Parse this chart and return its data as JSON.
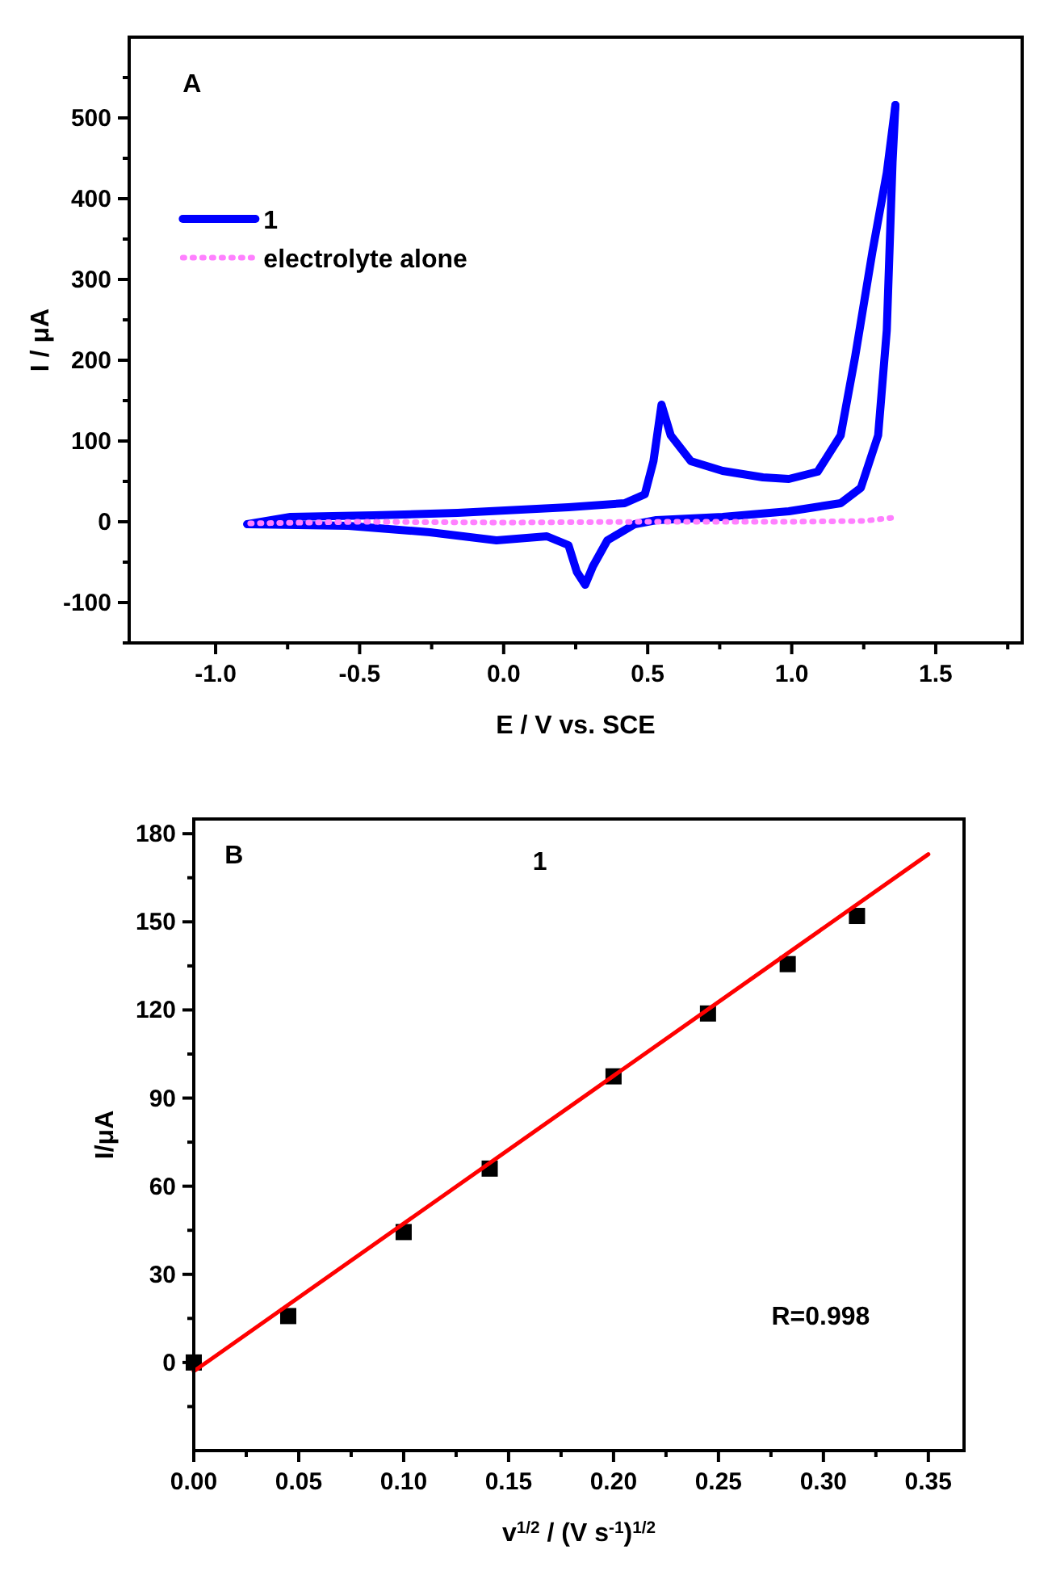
{
  "chart_data": [
    {
      "type": "line",
      "xlabel": "E / V vs. SCE",
      "ylabel": "I / μA",
      "annotations": [
        "A"
      ],
      "xlim": [
        -1.3,
        1.8
      ],
      "xticks": [
        {
          "value": -1,
          "label": "-1.0"
        },
        {
          "value": -0.75,
          "label": null
        },
        -0.5,
        {
          "value": -0.25,
          "label": null
        },
        {
          "value": 0,
          "label": "0.0"
        },
        {
          "value": 0.25,
          "label": null
        },
        0.5,
        {
          "value": 0.75,
          "label": null
        },
        {
          "value": 1,
          "label": "1.0"
        },
        {
          "value": 1.25,
          "label": null
        },
        1.5,
        {
          "value": 1.75,
          "label": null
        }
      ],
      "ylim": [
        -150,
        600
      ],
      "yticks": [
        {
          "value": -150,
          "label": null
        },
        -100,
        {
          "value": -50,
          "label": null
        },
        0,
        {
          "value": 50,
          "label": null
        },
        100,
        {
          "value": 150,
          "label": null
        },
        200,
        {
          "value": 250,
          "label": null
        },
        300,
        {
          "value": 350,
          "label": null
        },
        400,
        {
          "value": 450,
          "label": null
        },
        500,
        {
          "value": 550,
          "label": null
        }
      ],
      "legend": "top left",
      "grid": false,
      "series": [
        {
          "name": "1",
          "color": "#0000ff",
          "line_style": "solid",
          "x": [
            -0.89,
            -0.74,
            -0.45,
            -0.16,
            0.225,
            0.42,
            0.49,
            0.52,
            0.548,
            0.58,
            0.65,
            0.76,
            0.9,
            0.99,
            1.09,
            1.17,
            1.22,
            1.28,
            1.33,
            1.36
          ],
          "values": [
            -3,
            6,
            8,
            11,
            18,
            23,
            34,
            75,
            145,
            107,
            75,
            63,
            55,
            53,
            62,
            107,
            204,
            334,
            432,
            516
          ]
        },
        {
          "color": "#0000ff",
          "line_style": "solid",
          "x": [
            -0.89,
            -0.54,
            -0.256,
            -0.025,
            0.15,
            0.225,
            0.254,
            0.283,
            0.31,
            0.36,
            0.455,
            0.53,
            0.76,
            0.99,
            1.17,
            1.24,
            1.3,
            1.33,
            1.35,
            1.36
          ],
          "values": [
            -3,
            -5,
            -13,
            -23,
            -18,
            -29,
            -62,
            -78,
            -55,
            -23,
            -3,
            2,
            6,
            13,
            23,
            42,
            107,
            237,
            445,
            516
          ]
        },
        {
          "name": "electrolyte alone",
          "color": "#ff80ff",
          "line_style": "dotted",
          "x": [
            -0.88,
            -0.5,
            0.0,
            0.5,
            1.0,
            1.25,
            1.35
          ],
          "values": [
            -2,
            0,
            -1,
            0,
            0,
            1,
            5
          ]
        }
      ]
    },
    {
      "type": "scatter",
      "xlabel": "v$^{1/2}$ / (V s$^{-1}$)$^{1/2}$",
      "ylabel": "I/μA",
      "annotations": [
        "B",
        "1",
        "R=0.998"
      ],
      "xlim": [
        0,
        0.367
      ],
      "xticks": [
        {
          "value": 0,
          "label": "0.00"
        },
        {
          "value": 0.025,
          "label": null
        },
        0.05,
        {
          "value": 0.075,
          "label": null
        },
        {
          "value": 0.1,
          "label": "0.10"
        },
        {
          "value": 0.125,
          "label": null
        },
        0.15,
        {
          "value": 0.175,
          "label": null
        },
        {
          "value": 0.2,
          "label": "0.20"
        },
        {
          "value": 0.225,
          "label": null
        },
        0.25,
        {
          "value": 0.275,
          "label": null
        },
        {
          "value": 0.3,
          "label": "0.30"
        },
        {
          "value": 0.325,
          "label": null
        },
        0.35
      ],
      "ylim": [
        -30,
        185
      ],
      "yticks": [
        {
          "value": -15,
          "label": null
        },
        0,
        {
          "value": 15,
          "label": null
        },
        30,
        {
          "value": 45,
          "label": null
        },
        60,
        {
          "value": 75,
          "label": null
        },
        90,
        {
          "value": 105,
          "label": null
        },
        120,
        {
          "value": 135,
          "label": null
        },
        150,
        {
          "value": 165,
          "label": null
        },
        180
      ],
      "grid": false,
      "series": [
        {
          "marker": "square",
          "color": "#000000",
          "x": [
            0,
            0.045,
            0.1,
            0.141,
            0.2,
            0.245,
            0.283,
            0.316
          ],
          "values": [
            0,
            15.8,
            44.4,
            66,
            97.4,
            118.8,
            135.6,
            152
          ]
        },
        {
          "type": "line",
          "color": "#ff0000",
          "line_style": "solid",
          "x": [
            0,
            0.35
          ],
          "values": [
            -3,
            173
          ]
        }
      ]
    }
  ]
}
